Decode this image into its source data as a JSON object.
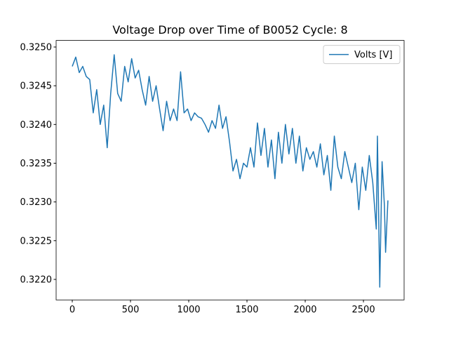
{
  "chart_data": {
    "type": "line",
    "title": "Voltage Drop over Time of B0052 Cycle: 8",
    "x": [
      0,
      30,
      60,
      90,
      120,
      150,
      180,
      210,
      240,
      270,
      300,
      330,
      360,
      390,
      420,
      450,
      480,
      510,
      540,
      570,
      600,
      630,
      660,
      690,
      720,
      750,
      780,
      810,
      840,
      870,
      900,
      930,
      960,
      990,
      1020,
      1050,
      1080,
      1110,
      1140,
      1170,
      1200,
      1230,
      1260,
      1290,
      1320,
      1350,
      1380,
      1410,
      1440,
      1470,
      1500,
      1530,
      1560,
      1590,
      1620,
      1650,
      1680,
      1710,
      1740,
      1770,
      1800,
      1830,
      1860,
      1890,
      1920,
      1950,
      1980,
      2010,
      2040,
      2070,
      2100,
      2130,
      2160,
      2190,
      2220,
      2250,
      2280,
      2310,
      2340,
      2370,
      2400,
      2430,
      2460,
      2490,
      2520,
      2550,
      2580,
      2610,
      2620,
      2640,
      2660,
      2680,
      2690,
      2710
    ],
    "series": [
      {
        "name": "Volts [V]",
        "color": "#1f77b4",
        "values": [
          0.32475,
          0.32487,
          0.32467,
          0.32475,
          0.32462,
          0.32458,
          0.32415,
          0.32445,
          0.324,
          0.32425,
          0.3237,
          0.3244,
          0.3249,
          0.3244,
          0.3243,
          0.32475,
          0.32455,
          0.32485,
          0.3246,
          0.3247,
          0.32445,
          0.32425,
          0.32462,
          0.3243,
          0.3245,
          0.3242,
          0.32392,
          0.3243,
          0.32405,
          0.3242,
          0.32405,
          0.32468,
          0.32415,
          0.3242,
          0.32405,
          0.32415,
          0.3241,
          0.32408,
          0.324,
          0.3239,
          0.32405,
          0.32395,
          0.32425,
          0.32395,
          0.3241,
          0.32378,
          0.3234,
          0.32355,
          0.3233,
          0.3235,
          0.32345,
          0.3237,
          0.32345,
          0.32402,
          0.3236,
          0.32395,
          0.32345,
          0.3238,
          0.3233,
          0.3239,
          0.3235,
          0.324,
          0.32362,
          0.32395,
          0.3235,
          0.32385,
          0.3234,
          0.3237,
          0.32355,
          0.32365,
          0.32345,
          0.32375,
          0.32335,
          0.3236,
          0.32315,
          0.32385,
          0.32345,
          0.3233,
          0.32365,
          0.32345,
          0.32325,
          0.3235,
          0.3229,
          0.32345,
          0.32315,
          0.3236,
          0.32325,
          0.32265,
          0.32385,
          0.3219,
          0.32352,
          0.32295,
          0.32235,
          0.32302
        ]
      }
    ],
    "xlim": [
      -138.5,
      2849
    ],
    "ylim": [
      0.321735,
      0.325085
    ],
    "xticks": [
      0,
      500,
      1000,
      1500,
      2000,
      2500
    ],
    "yticks": [
      {
        "value": 0.322,
        "label": "0.3220"
      },
      {
        "value": 0.3225,
        "label": "0.3225"
      },
      {
        "value": 0.323,
        "label": "0.3230"
      },
      {
        "value": 0.3235,
        "label": "0.3235"
      },
      {
        "value": 0.324,
        "label": "0.3240"
      },
      {
        "value": 0.3245,
        "label": "0.3245"
      },
      {
        "value": 0.325,
        "label": "0.3250"
      }
    ],
    "legend": "upper right",
    "grid": false
  }
}
